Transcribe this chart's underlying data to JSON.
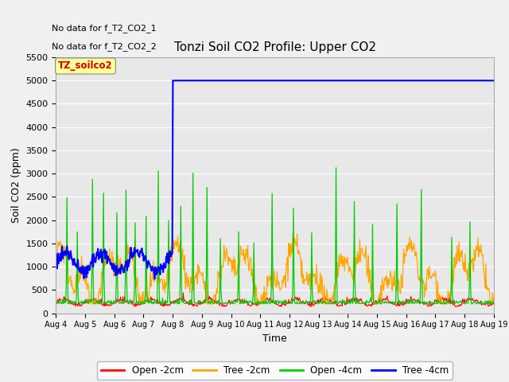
{
  "title": "Tonzi Soil CO2 Profile: Upper CO2",
  "xlabel": "Time",
  "ylabel": "Soil CO2 (ppm)",
  "ylim": [
    0,
    5500
  ],
  "yticks": [
    0,
    500,
    1000,
    1500,
    2000,
    2500,
    3000,
    3500,
    4000,
    4500,
    5000,
    5500
  ],
  "xtick_labels": [
    "Aug 4",
    "Aug 5",
    "Aug 6",
    "Aug 7",
    "Aug 8",
    "Aug 9",
    "Aug 10",
    "Aug 11",
    "Aug 12",
    "Aug 13",
    "Aug 14",
    "Aug 15",
    "Aug 16",
    "Aug 17",
    "Aug 18",
    "Aug 19"
  ],
  "no_data_text_1": "No data for f_T2_CO2_1",
  "no_data_text_2": "No data for f_T2_CO2_2",
  "legend_box_label": "TZ_soilco2",
  "legend_entries": [
    "Open -2cm",
    "Tree -2cm",
    "Open -4cm",
    "Tree -4cm"
  ],
  "legend_colors": [
    "#ff0000",
    "#ffa500",
    "#00cc00",
    "#0000ff"
  ],
  "bg_color": "#e8e8e8",
  "grid_color": "#ffffff",
  "title_fontsize": 11,
  "axis_label_fontsize": 9,
  "tick_fontsize": 8,
  "n_days": 15,
  "pts_per_day": 48,
  "seed": 42
}
